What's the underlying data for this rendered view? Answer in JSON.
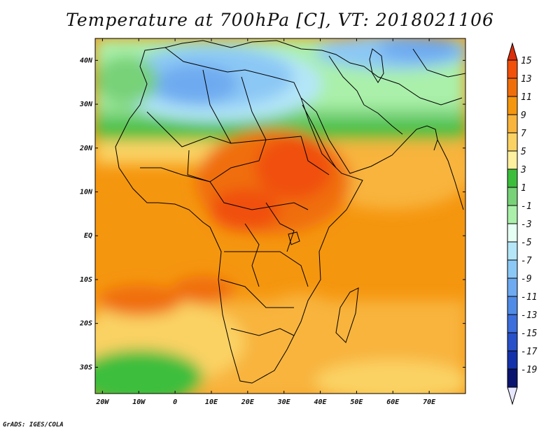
{
  "title": "Temperature at 700hPa [C], VT: 2018021106",
  "credit": "GrADS: IGES/COLA",
  "map": {
    "lon_range": [
      -22,
      80
    ],
    "lat_range": [
      -36,
      45
    ],
    "lat_ticks": [
      {
        "value": 40,
        "label": "40N"
      },
      {
        "value": 30,
        "label": "30N"
      },
      {
        "value": 20,
        "label": "20N"
      },
      {
        "value": 10,
        "label": "10N"
      },
      {
        "value": 0,
        "label": "EQ"
      },
      {
        "value": -10,
        "label": "10S"
      },
      {
        "value": -20,
        "label": "20S"
      },
      {
        "value": -30,
        "label": "30S"
      }
    ],
    "lon_ticks": [
      {
        "value": -20,
        "label": "20W"
      },
      {
        "value": -10,
        "label": "10W"
      },
      {
        "value": 0,
        "label": "0"
      },
      {
        "value": 10,
        "label": "10E"
      },
      {
        "value": 20,
        "label": "20E"
      },
      {
        "value": 30,
        "label": "30E"
      },
      {
        "value": 40,
        "label": "40E"
      },
      {
        "value": 50,
        "label": "50E"
      },
      {
        "value": 60,
        "label": "60E"
      },
      {
        "value": 70,
        "label": "70E"
      }
    ]
  },
  "colorbar": {
    "labels": [
      "15",
      "13",
      "11",
      "9",
      "7",
      "5",
      "3",
      "1",
      "-1",
      "-3",
      "-5",
      "-7",
      "-9",
      "-11",
      "-13",
      "-15",
      "-17",
      "-19"
    ],
    "colors": [
      "#dc2d0a",
      "#f0500a",
      "#f06e0a",
      "#f5960f",
      "#f8b43c",
      "#fad264",
      "#fff0a0",
      "#3cbe3c",
      "#78d278",
      "#aaf0aa",
      "#e6fff5",
      "#b4e6f8",
      "#8cc8f5",
      "#6eaaf0",
      "#508ce6",
      "#3c6edc",
      "#2850c8",
      "#1432aa",
      "#0a146e",
      "#e6e6ff"
    ]
  }
}
